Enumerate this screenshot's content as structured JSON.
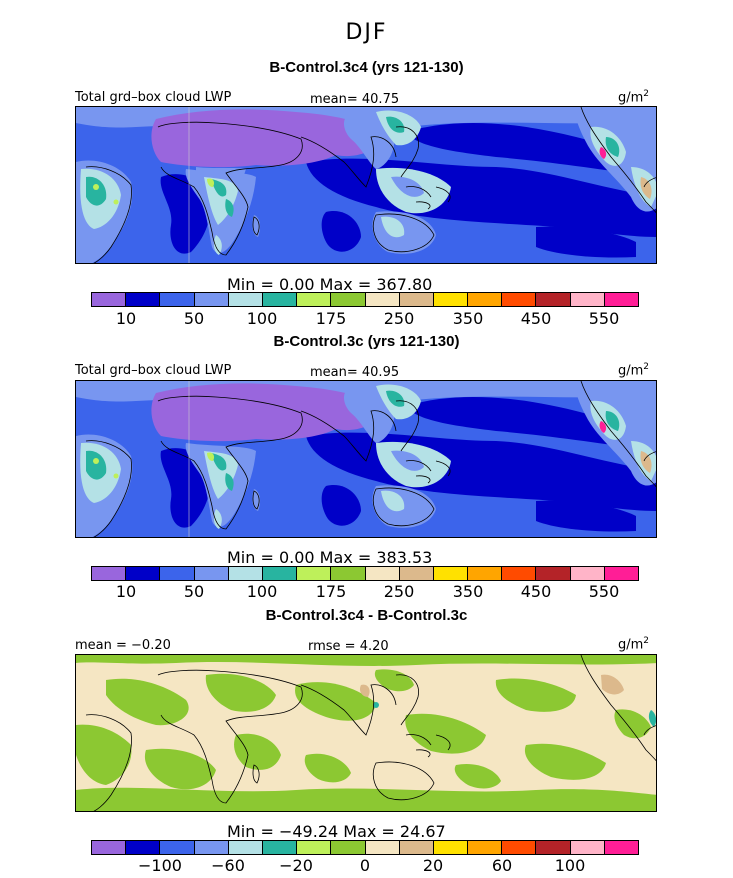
{
  "season": "DJF",
  "colors": {
    "levels": [
      "#9966dd",
      "#0000c8",
      "#3c64eb",
      "#7896f0",
      "#b4e1e6",
      "#28b4a0",
      "#bef05a",
      "#8cc832",
      "#f5e6c3",
      "#dcb98c",
      "#ffe100",
      "#ffa500",
      "#ff4b00",
      "#b42328",
      "#ffb4c8",
      "#ff1e96"
    ],
    "ocean_dark": "#0000c8",
    "ocean_mid": "#3c64eb",
    "land_light": "#7896f0"
  },
  "panels": [
    {
      "title": "B-Control.3c4 (yrs 121-130)",
      "left_label": "Total grd–box cloud LWP",
      "mid_label": "mean=  40.75",
      "units": "g/m",
      "units_exp": "2",
      "stats": "Min =    0.00  Max =  367.80",
      "ticks": [
        "10",
        "50",
        "100",
        "175",
        "250",
        "350",
        "450",
        "550"
      ]
    },
    {
      "title": "B-Control.3c (yrs 121-130)",
      "left_label": "Total grd–box cloud LWP",
      "mid_label": "mean=  40.95",
      "units": "g/m",
      "units_exp": "2",
      "stats": "Min =    0.00  Max =  383.53",
      "ticks": [
        "10",
        "50",
        "100",
        "175",
        "250",
        "350",
        "450",
        "550"
      ]
    },
    {
      "title": "B-Control.3c4 - B-Control.3c",
      "left_label": "mean =  −0.20",
      "mid_label": "rmse =   4.20",
      "units": "g/m",
      "units_exp": "2",
      "stats": "Min =  −49.24  Max =   24.67",
      "ticks": [
        "−100",
        "−60",
        "−20",
        "0",
        "20",
        "60",
        "100"
      ]
    }
  ]
}
